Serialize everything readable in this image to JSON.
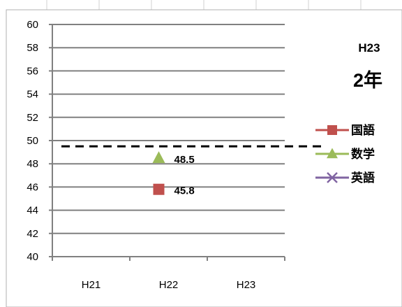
{
  "header": {
    "year_label": "H23",
    "grade_label": "2年"
  },
  "colors": {
    "kokugo": "#c0504d",
    "sugaku": "#9bbb59",
    "eigo": "#8064a2",
    "reference_line": "#000000",
    "gridline": "#808080",
    "sheet_grid": "#d0d0d0"
  },
  "chart_data": {
    "type": "line",
    "categories": [
      "H21",
      "H22",
      "H23"
    ],
    "ylim": [
      40,
      60
    ],
    "ytick_step": 2,
    "yticks": [
      "40",
      "42",
      "44",
      "46",
      "48",
      "50",
      "52",
      "54",
      "56",
      "58",
      "60"
    ],
    "reference_value": 49.5,
    "series": [
      {
        "name": "国語",
        "marker": "square",
        "color": "#c0504d",
        "values": [
          null,
          45.8,
          null
        ],
        "labels": [
          "",
          "45.8",
          ""
        ]
      },
      {
        "name": "数学",
        "marker": "triangle",
        "color": "#9bbb59",
        "values": [
          null,
          48.5,
          null
        ],
        "labels": [
          "",
          "48.5",
          ""
        ]
      },
      {
        "name": "英語",
        "marker": "x",
        "color": "#8064a2",
        "values": [
          null,
          null,
          null
        ],
        "labels": [
          "",
          "",
          ""
        ]
      }
    ],
    "legend_position": "right"
  }
}
